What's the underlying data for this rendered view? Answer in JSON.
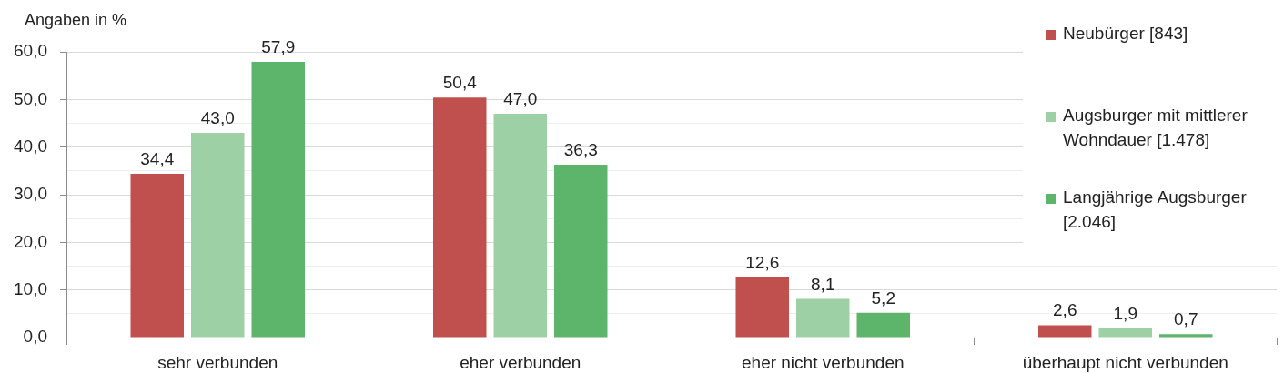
{
  "chart_data": {
    "type": "bar",
    "ylabel": "Angaben in %",
    "categories": [
      "sehr verbunden",
      "eher verbunden",
      "eher nicht verbunden",
      "überhaupt nicht verbunden"
    ],
    "series": [
      {
        "name": "Neubürger [843]",
        "color": "#c0504d",
        "values": [
          34.4,
          50.4,
          12.6,
          2.6
        ],
        "value_labels": [
          "34,4",
          "50,4",
          "12,6",
          "2,6"
        ]
      },
      {
        "name": "Augsburger mit mittlerer Wohndauer [1.478]",
        "color": "#9dd0a4",
        "values": [
          43.0,
          47.0,
          8.1,
          1.9
        ],
        "value_labels": [
          "43,0",
          "47,0",
          "8,1",
          "1,9"
        ]
      },
      {
        "name": "Langjährige Augsburger [2.046]",
        "color": "#5db46b",
        "values": [
          57.9,
          36.3,
          5.2,
          0.7
        ],
        "value_labels": [
          "57,9",
          "36,3",
          "5,2",
          "0,7"
        ]
      }
    ],
    "ylim": [
      0,
      60
    ],
    "yticks": [
      {
        "value": 0,
        "label": "0,0"
      },
      {
        "value": 5,
        "label": null
      },
      {
        "value": 10,
        "label": "10,0"
      },
      {
        "value": 15,
        "label": null
      },
      {
        "value": 20,
        "label": "20,0"
      },
      {
        "value": 25,
        "label": null
      },
      {
        "value": 30,
        "label": "30,0"
      },
      {
        "value": 35,
        "label": null
      },
      {
        "value": 40,
        "label": "40,0"
      },
      {
        "value": 45,
        "label": null
      },
      {
        "value": 50,
        "label": "50,0"
      },
      {
        "value": 55,
        "label": null
      },
      {
        "value": 60,
        "label": "60,0"
      }
    ],
    "grid": "y",
    "legend": "top right"
  }
}
